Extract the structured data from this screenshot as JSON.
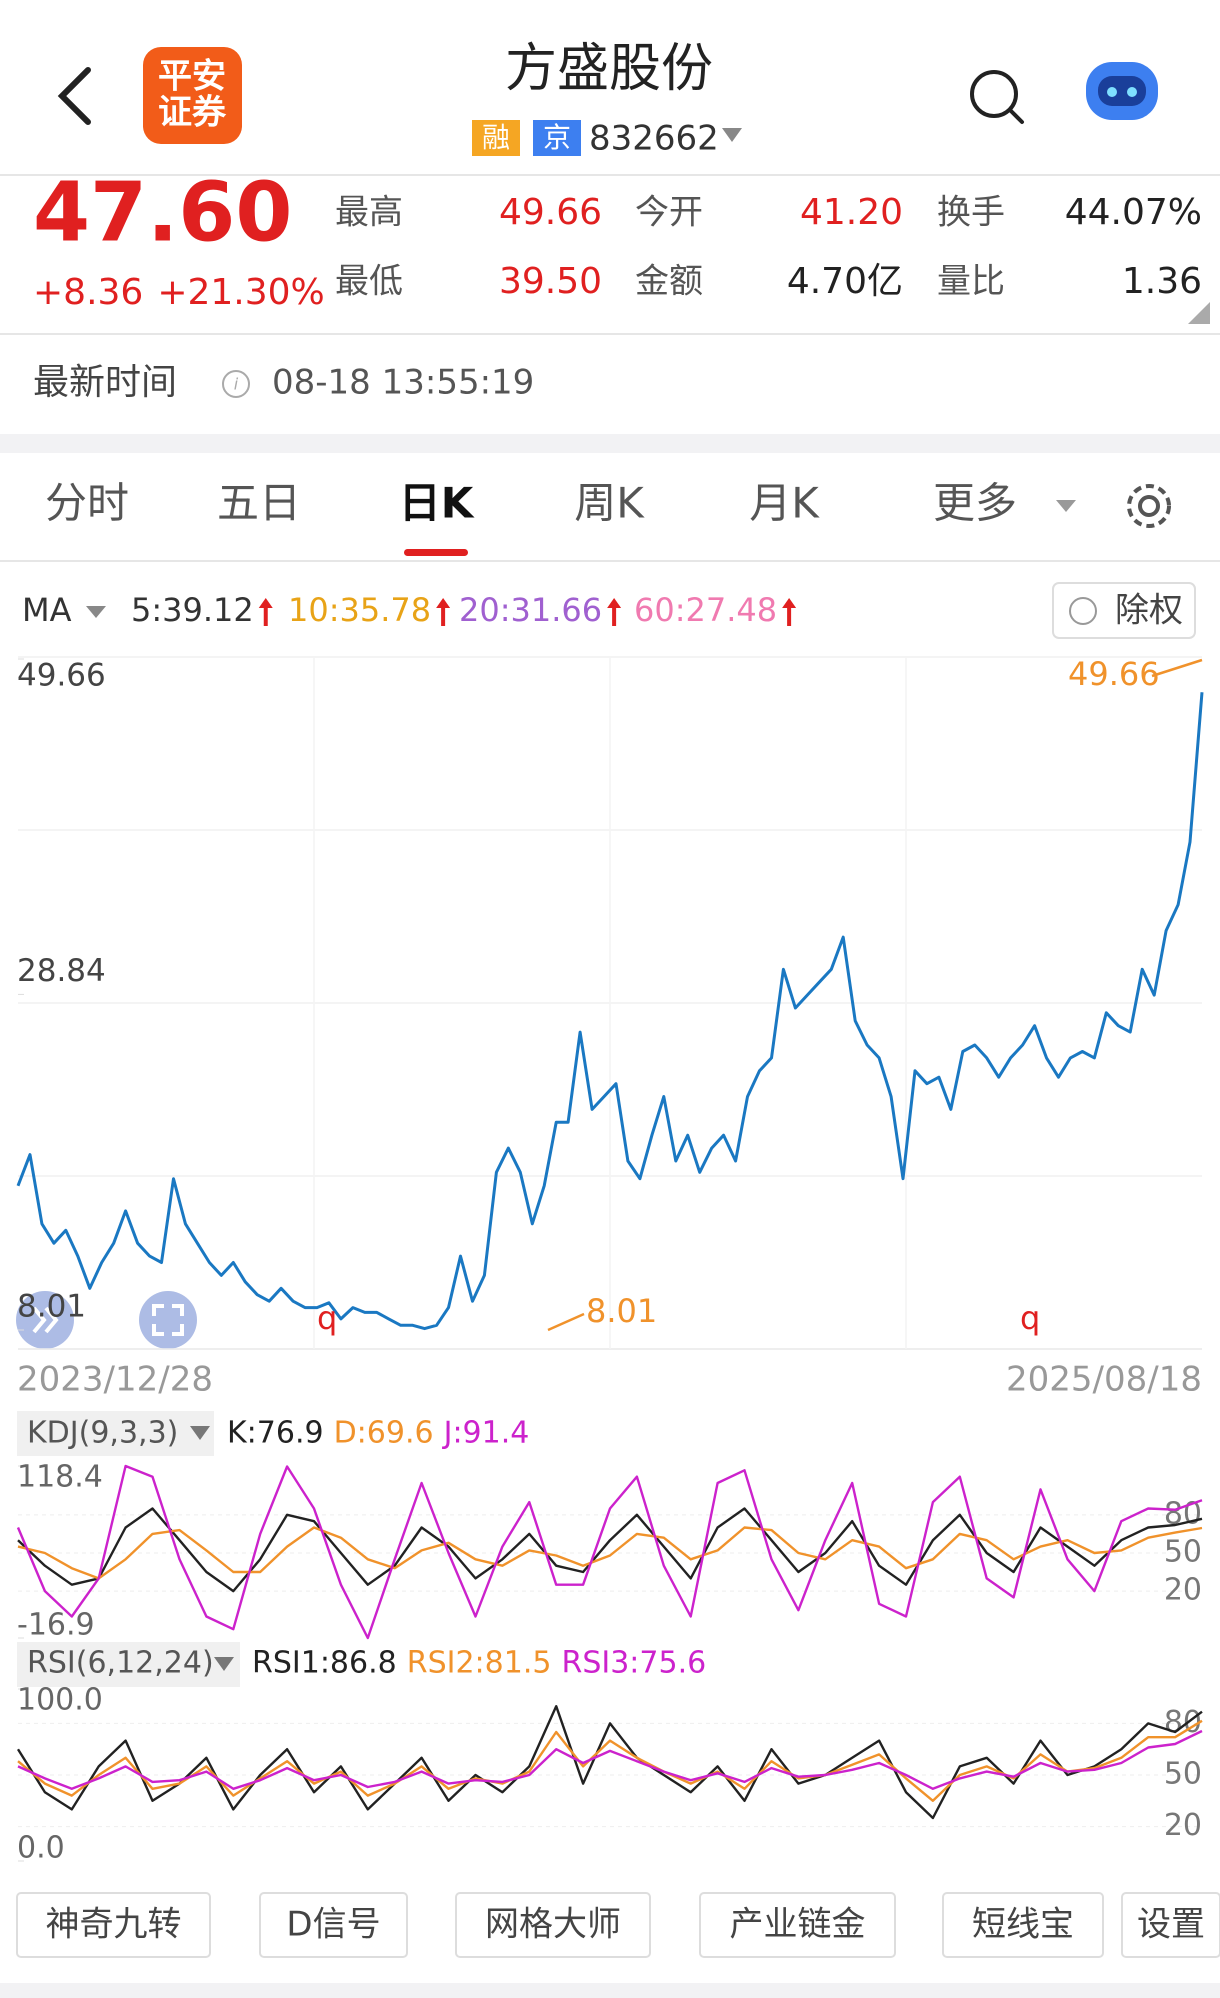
{
  "header": {
    "logo": [
      "平安",
      "证券"
    ],
    "title": "方盛股份",
    "badges": [
      "融",
      "京"
    ],
    "code": "832662"
  },
  "quote": {
    "price": "47.60",
    "change": "+8.36",
    "change_pct": "+21.30%",
    "stats": [
      {
        "label": "最高",
        "value": "49.66",
        "color": "#e02020"
      },
      {
        "label": "今开",
        "value": "41.20",
        "color": "#e02020"
      },
      {
        "label": "换手",
        "value": "44.07%",
        "color": "#222222"
      },
      {
        "label": "最低",
        "value": "39.50",
        "color": "#e02020"
      },
      {
        "label": "金额",
        "value": "4.70亿",
        "color": "#222222"
      },
      {
        "label": "量比",
        "value": "1.36",
        "color": "#222222"
      }
    ]
  },
  "update": {
    "label": "最新时间",
    "time": "08-18 13:55:19"
  },
  "tabs": [
    "分时",
    "五日",
    "日K",
    "周K",
    "月K",
    "更多"
  ],
  "active_tab": 2,
  "ma": {
    "label": "MA",
    "items": [
      "5:39.12",
      "10:35.78",
      "20:31.66",
      "60:27.48"
    ],
    "colors": [
      "#333333",
      "#e8a317",
      "#a060d0",
      "#f07ab0"
    ]
  },
  "adjust_button": "除权",
  "chart_data": [
    {
      "type": "line",
      "color": "#1a78c2",
      "ylim": [
        8.01,
        49.66
      ],
      "yticks": [
        8.01,
        28.84,
        49.66
      ],
      "xlim": [
        "2023/12/28",
        "2025/08/18"
      ],
      "annotations": [
        "49.66",
        "8.01",
        "q",
        "q"
      ],
      "values": [
        16.96,
        18.9,
        14.6,
        13.4,
        14.2,
        12.6,
        10.6,
        12.2,
        13.4,
        15.4,
        13.4,
        12.6,
        12.2,
        17.4,
        14.6,
        13.4,
        12.2,
        11.4,
        12.2,
        11.0,
        10.2,
        9.8,
        10.6,
        9.8,
        9.4,
        9.4,
        9.7,
        8.7,
        9.4,
        9.1,
        9.1,
        8.7,
        8.3,
        8.3,
        8.1,
        8.3,
        9.4,
        12.6,
        9.8,
        11.4,
        17.8,
        19.3,
        17.8,
        14.6,
        16.96,
        20.9,
        20.9,
        26.5,
        21.7,
        22.5,
        23.3,
        18.5,
        17.4,
        20.1,
        22.5,
        18.5,
        20.1,
        17.8,
        19.3,
        20.1,
        18.5,
        22.5,
        24.1,
        24.9,
        30.4,
        28.0,
        28.8,
        29.6,
        30.4,
        32.4,
        27.2,
        25.7,
        24.9,
        22.5,
        17.4,
        24.1,
        23.3,
        23.7,
        21.7,
        25.3,
        25.7,
        24.9,
        23.7,
        24.9,
        25.7,
        26.9,
        24.9,
        23.7,
        24.9,
        25.3,
        24.9,
        27.7,
        26.9,
        26.5,
        30.4,
        28.8,
        32.8,
        34.4,
        38.3,
        47.6
      ]
    },
    {
      "type": "line",
      "label": "KDJ(9,3,3)",
      "ylim": [
        -16.9,
        118.4
      ],
      "yticks": [
        -16.9,
        20,
        50,
        80,
        118.4
      ],
      "series": [
        {
          "name": "K:76.9",
          "color": "#222222",
          "values": [
            60,
            40,
            25,
            30,
            70,
            85,
            60,
            35,
            20,
            45,
            80,
            75,
            50,
            25,
            40,
            70,
            55,
            30,
            45,
            65,
            40,
            35,
            60,
            80,
            55,
            30,
            70,
            85,
            60,
            35,
            50,
            75,
            40,
            25,
            60,
            80,
            50,
            35,
            70,
            55,
            40,
            60,
            70,
            72,
            76.9
          ]
        },
        {
          "name": "D:69.6",
          "color": "#f0922b",
          "values": [
            55,
            50,
            38,
            30,
            45,
            65,
            68,
            52,
            35,
            35,
            55,
            70,
            62,
            45,
            38,
            52,
            58,
            45,
            40,
            52,
            48,
            40,
            48,
            65,
            62,
            45,
            52,
            70,
            68,
            50,
            45,
            60,
            55,
            38,
            45,
            65,
            60,
            45,
            55,
            60,
            50,
            52,
            62,
            66,
            69.6
          ]
        },
        {
          "name": "J:91.4",
          "color": "#cc22cc",
          "values": [
            70,
            20,
            0,
            30,
            118.4,
            110,
            45,
            0,
            -10,
            65,
            118,
            85,
            25,
            -16.9,
            45,
            105,
            50,
            0,
            55,
            90,
            25,
            25,
            85,
            110,
            40,
            0,
            105,
            115,
            45,
            5,
            60,
            105,
            10,
            0,
            90,
            110,
            30,
            15,
            100,
            45,
            20,
            75,
            85,
            84,
            91.4
          ]
        }
      ]
    },
    {
      "type": "line",
      "label": "RSI(6,12,24)",
      "ylim": [
        0,
        100
      ],
      "yticks": [
        {
          "value": 0,
          "label": "0.0"
        },
        20,
        50,
        80,
        {
          "value": 100,
          "label": "100.0"
        }
      ],
      "series": [
        {
          "name": "RSI1:86.8",
          "color": "#222222",
          "values": [
            65,
            40,
            30,
            55,
            70,
            35,
            45,
            60,
            30,
            50,
            65,
            40,
            55,
            30,
            45,
            60,
            35,
            50,
            40,
            55,
            90,
            45,
            80,
            60,
            50,
            40,
            55,
            35,
            65,
            45,
            50,
            60,
            70,
            40,
            25,
            55,
            60,
            45,
            70,
            50,
            55,
            65,
            80,
            75,
            86.8
          ]
        },
        {
          "name": "RSI2:81.5",
          "color": "#f0922b",
          "values": [
            58,
            45,
            38,
            50,
            60,
            42,
            45,
            55,
            38,
            48,
            58,
            45,
            52,
            38,
            45,
            55,
            42,
            48,
            45,
            52,
            75,
            55,
            70,
            60,
            52,
            45,
            52,
            42,
            58,
            48,
            50,
            56,
            62,
            48,
            35,
            50,
            55,
            48,
            62,
            52,
            54,
            60,
            72,
            72,
            81.5
          ]
        },
        {
          "name": "RSI3:75.6",
          "color": "#cc22cc",
          "values": [
            55,
            48,
            42,
            48,
            55,
            46,
            47,
            52,
            42,
            47,
            54,
            47,
            50,
            43,
            46,
            52,
            45,
            47,
            46,
            50,
            65,
            57,
            64,
            58,
            52,
            47,
            51,
            46,
            54,
            49,
            50,
            53,
            57,
            50,
            42,
            48,
            52,
            49,
            57,
            52,
            53,
            57,
            66,
            68,
            75.6
          ]
        }
      ]
    }
  ],
  "tools": [
    "神奇九转",
    "D信号",
    "网格大师",
    "产业链金",
    "短线宝",
    "设置"
  ]
}
